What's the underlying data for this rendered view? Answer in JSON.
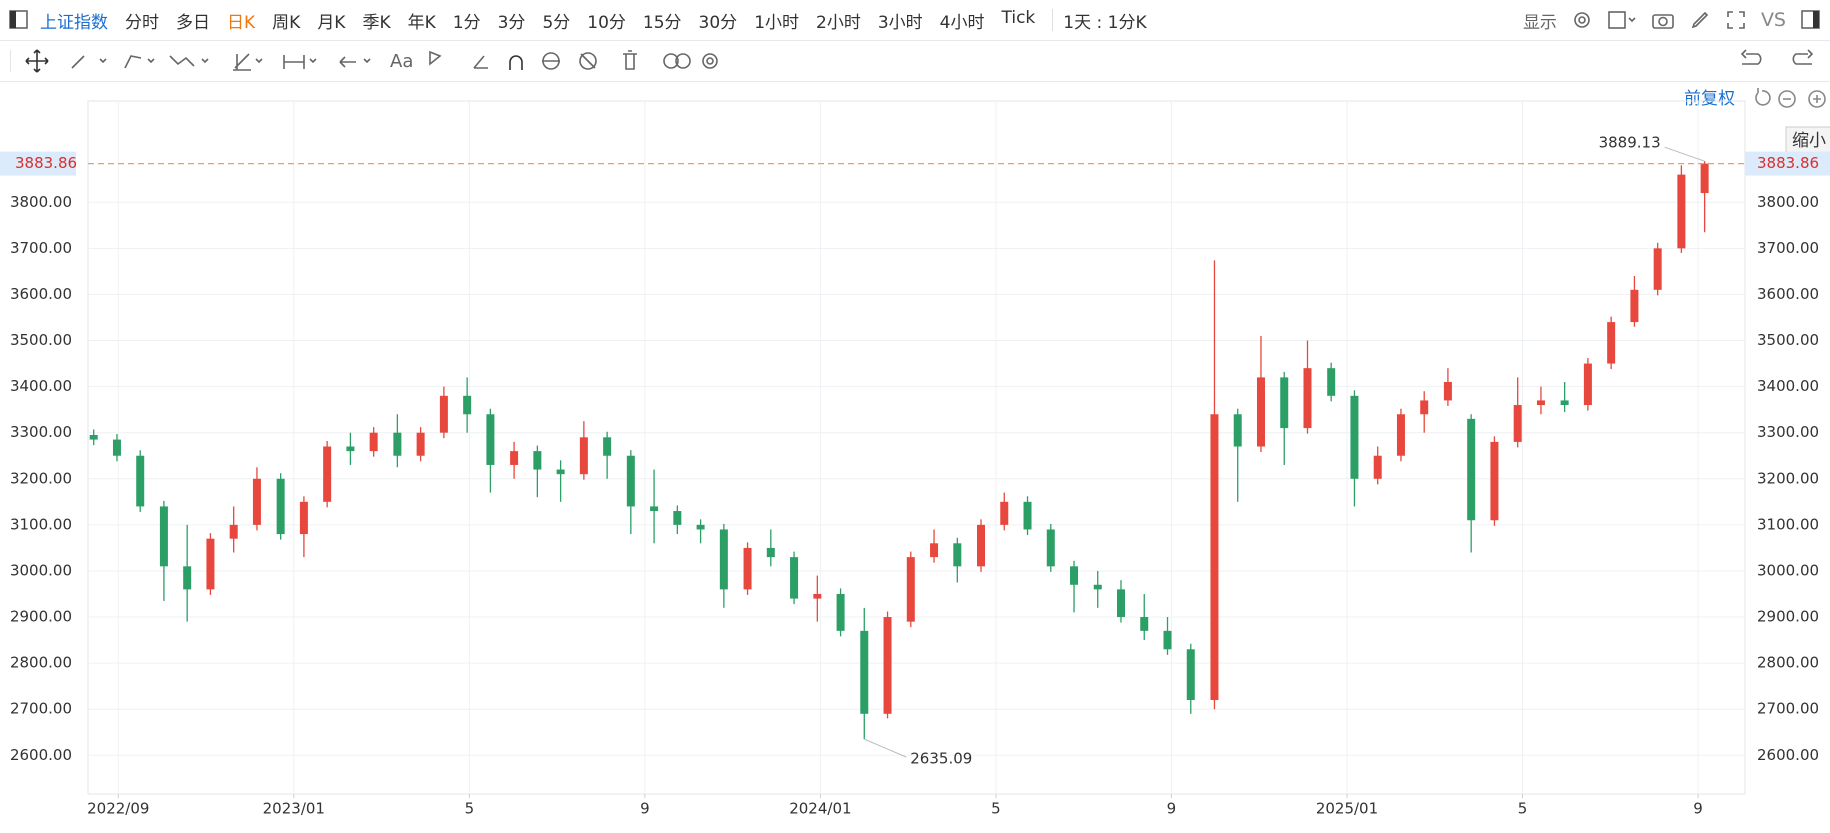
{
  "toolbar": {
    "symbol": "上证指数",
    "periods": [
      "分时",
      "多日",
      "日K",
      "周K",
      "月K",
      "季K",
      "年K",
      "1分",
      "3分",
      "5分",
      "10分",
      "15分",
      "30分",
      "1小时",
      "2小时",
      "3小时",
      "4小时",
      "Tick"
    ],
    "active_period_index": 2,
    "interval": "1天 : 1分K",
    "display": "显示",
    "compare": "VS",
    "text_tool": "Aa"
  },
  "chart_header": {
    "adjustment": "前复权",
    "tooltip": "缩小"
  },
  "chart_data": {
    "type": "candlestick",
    "x": [
      7.44,
      7.97,
      8.5,
      9.04,
      9.57,
      10.1,
      10.63,
      11.16,
      11.7,
      12.23,
      12.76,
      13.29,
      13.82,
      14.36,
      14.89,
      15.42,
      15.95,
      16.48,
      17.02,
      17.55,
      18.08,
      18.61,
      19.14,
      19.68,
      20.21,
      20.74,
      21.27,
      21.8,
      22.34,
      22.87,
      23.4,
      23.93,
      24.46,
      25.0,
      25.53,
      26.06,
      26.59,
      27.12,
      27.66,
      28.19,
      28.72,
      29.25,
      29.78,
      30.32,
      30.85,
      31.38,
      31.91,
      32.44,
      32.98,
      33.51,
      34.04,
      34.57,
      35.1,
      35.64,
      36.17,
      36.7,
      37.23,
      37.76,
      38.3,
      38.83,
      39.36,
      39.89,
      40.42,
      40.96,
      41.49,
      42.02,
      42.55,
      43.08,
      43.62,
      44.15
    ],
    "open": [
      3295,
      3285,
      3250,
      3140,
      3010,
      2960,
      3070,
      3100,
      3200,
      3080,
      3150,
      3270,
      3260,
      3300,
      3250,
      3300,
      3380,
      3340,
      3230,
      3260,
      3220,
      3210,
      3290,
      3250,
      3140,
      3130,
      3100,
      3090,
      2960,
      3050,
      3030,
      2940,
      2950,
      2870,
      2690,
      2890,
      3030,
      3060,
      3010,
      3100,
      3150,
      3090,
      3010,
      2970,
      2960,
      2900,
      2870,
      2830,
      2720,
      3340,
      3270,
      3420,
      3310,
      3440,
      3380,
      3200,
      3250,
      3340,
      3370,
      3330,
      3110,
      3280,
      3360,
      3370,
      3360,
      3450,
      3540,
      3610,
      3700,
      3820
    ],
    "high": [
      3307,
      3297,
      3262,
      3152,
      3100,
      3082,
      3140,
      3225,
      3212,
      3162,
      3282,
      3300,
      3312,
      3340,
      3312,
      3400,
      3420,
      3352,
      3280,
      3272,
      3240,
      3325,
      3302,
      3262,
      3220,
      3142,
      3112,
      3102,
      3062,
      3090,
      3042,
      2990,
      2962,
      2920,
      2912,
      3042,
      3090,
      3072,
      3112,
      3170,
      3162,
      3102,
      3022,
      3000,
      2980,
      2950,
      2900,
      2842,
      3674,
      3352,
      3510,
      3432,
      3500,
      3452,
      3392,
      3270,
      3352,
      3390,
      3440,
      3340,
      3292,
      3420,
      3400,
      3410,
      3462,
      3552,
      3640,
      3712,
      3880,
      3889.13
    ],
    "low": [
      3273,
      3238,
      3128,
      2935,
      2890,
      2948,
      3040,
      3088,
      3068,
      3030,
      3138,
      3230,
      3248,
      3225,
      3238,
      3288,
      3300,
      3170,
      3200,
      3160,
      3150,
      3198,
      3200,
      3080,
      3060,
      3080,
      3060,
      2920,
      2948,
      3010,
      2928,
      2890,
      2858,
      2635.09,
      2680,
      2878,
      3018,
      2975,
      2998,
      3088,
      3078,
      2998,
      2910,
      2920,
      2888,
      2850,
      2818,
      2690,
      2700,
      3150,
      3258,
      3230,
      3298,
      3368,
      3140,
      3188,
      3238,
      3300,
      3358,
      3040,
      3098,
      3268,
      3340,
      3345,
      3348,
      3438,
      3530,
      3598,
      3690,
      3735
    ],
    "close": [
      3285,
      3250,
      3140,
      3010,
      2960,
      3070,
      3100,
      3200,
      3080,
      3150,
      3270,
      3260,
      3300,
      3250,
      3300,
      3380,
      3340,
      3230,
      3260,
      3220,
      3210,
      3290,
      3250,
      3140,
      3130,
      3100,
      3090,
      2960,
      3050,
      3030,
      2940,
      2950,
      2870,
      2690,
      2900,
      3030,
      3060,
      3010,
      3100,
      3150,
      3090,
      3010,
      2970,
      2960,
      2900,
      2870,
      2830,
      2720,
      3340,
      3270,
      3420,
      3310,
      3440,
      3380,
      3200,
      3250,
      3340,
      3370,
      3410,
      3110,
      3280,
      3360,
      3370,
      3360,
      3450,
      3540,
      3610,
      3700,
      3860,
      3883.86
    ],
    "up_color": "#e8473d",
    "down_color": "#2c9f67",
    "price_line_color": "#e8a060",
    "xlim": [
      7.31,
      45.07
    ],
    "xticks": [
      {
        "value": 8,
        "label": "2022/09"
      },
      {
        "value": 12,
        "label": "2023/01"
      },
      {
        "value": 16,
        "label": "5"
      },
      {
        "value": 20,
        "label": "9"
      },
      {
        "value": 24,
        "label": "2024/01"
      },
      {
        "value": 28,
        "label": "5"
      },
      {
        "value": 32,
        "label": "9"
      },
      {
        "value": 36,
        "label": "2025/01"
      },
      {
        "value": 40,
        "label": "5"
      },
      {
        "value": 44,
        "label": "9"
      }
    ],
    "ylim": [
      2516,
      3985
    ],
    "yticks": [
      {
        "value": 2600,
        "label": "2600.00"
      },
      {
        "value": 2700,
        "label": "2700.00"
      },
      {
        "value": 2800,
        "label": "2800.00"
      },
      {
        "value": 2900,
        "label": "2900.00"
      },
      {
        "value": 3000,
        "label": "3000.00"
      },
      {
        "value": 3100,
        "label": "3100.00"
      },
      {
        "value": 3200,
        "label": "3200.00"
      },
      {
        "value": 3300,
        "label": "3300.00"
      },
      {
        "value": 3400,
        "label": "3400.00"
      },
      {
        "value": 3500,
        "label": "3500.00"
      },
      {
        "value": 3600,
        "label": "3600.00"
      },
      {
        "value": 3700,
        "label": "3700.00"
      },
      {
        "value": 3800,
        "label": "3800.00"
      }
    ],
    "grid": true
  }
}
